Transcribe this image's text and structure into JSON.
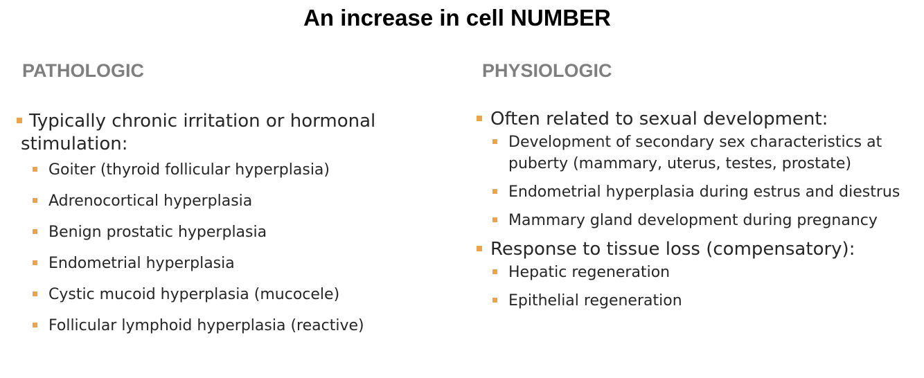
{
  "title": "An increase in cell NUMBER",
  "colors": {
    "bullet": "#f0a247",
    "heading": "#7f7f7f",
    "text": "#262626"
  },
  "pathologic": {
    "heading": "PATHOLOGIC",
    "groups": [
      {
        "label": "Typically chronic irritation or hormonal stimulation:",
        "items": [
          "Goiter (thyroid follicular hyperplasia)",
          "Adrenocortical hyperplasia",
          "Benign prostatic hyperplasia",
          "Endometrial hyperplasia",
          "Cystic mucoid hyperplasia (mucocele)",
          "Follicular lymphoid hyperplasia (reactive)"
        ]
      }
    ]
  },
  "physiologic": {
    "heading": "PHYSIOLOGIC",
    "groups": [
      {
        "label": "Often related to sexual development:",
        "items": [
          "Development of secondary sex characteristics at puberty (mammary, uterus, testes, prostate)",
          "Endometrial hyperplasia during estrus and diestrus",
          "Mammary gland development during pregnancy"
        ]
      },
      {
        "label": "Response to tissue loss (compensatory):",
        "items": [
          "Hepatic regeneration",
          "Epithelial regeneration"
        ]
      }
    ]
  }
}
